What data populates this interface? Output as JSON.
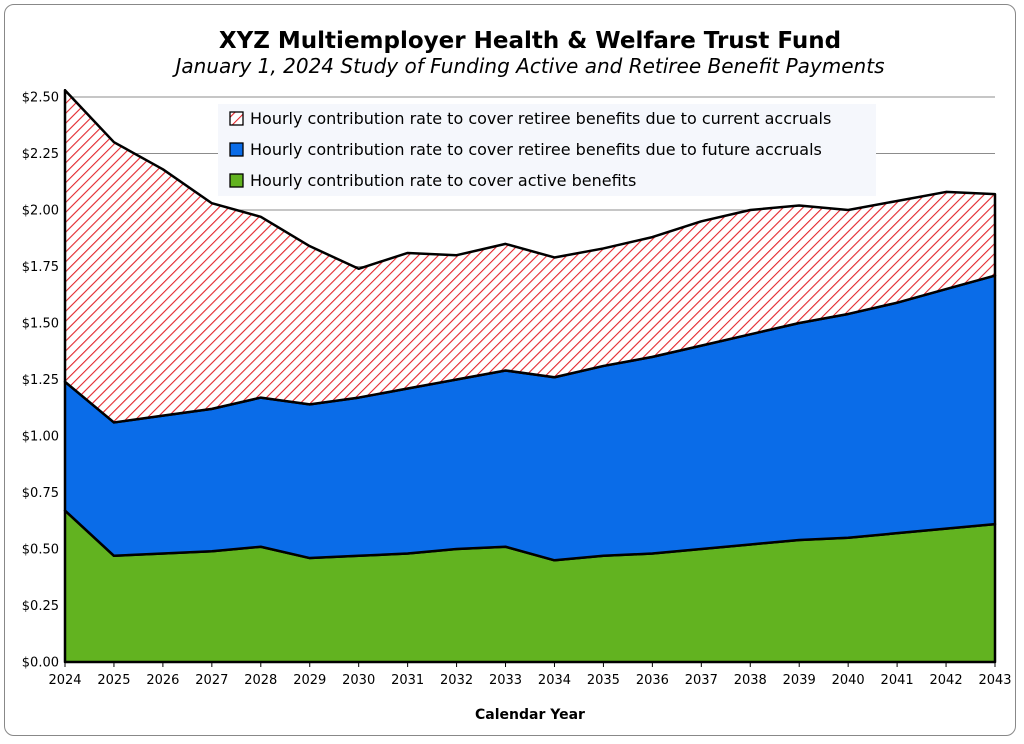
{
  "chart_data": {
    "type": "area",
    "stacked": true,
    "title": "XYZ Multiemployer Health & Welfare Trust Fund",
    "subtitle": "January 1, 2024 Study of Funding Active and Retiree Benefit Payments",
    "xlabel": "Calendar Year",
    "ylabel": "",
    "ylim": [
      0,
      2.5
    ],
    "yticks": [
      "$0.00",
      "$0.25",
      "$0.50",
      "$0.75",
      "$1.00",
      "$1.25",
      "$1.50",
      "$1.75",
      "$2.00",
      "$2.25",
      "$2.50"
    ],
    "grid": true,
    "legend_position": "top-right",
    "x": [
      "2024",
      "2025",
      "2026",
      "2027",
      "2028",
      "2029",
      "2030",
      "2031",
      "2032",
      "2033",
      "2034",
      "2035",
      "2036",
      "2037",
      "2038",
      "2039",
      "2040",
      "2041",
      "2042",
      "2043"
    ],
    "series": [
      {
        "name": "Hourly contribution rate to cover active benefits",
        "color": "#62b320",
        "pattern": "solid",
        "values": [
          0.67,
          0.47,
          0.48,
          0.49,
          0.51,
          0.46,
          0.47,
          0.48,
          0.5,
          0.51,
          0.45,
          0.47,
          0.48,
          0.5,
          0.52,
          0.54,
          0.55,
          0.57,
          0.59,
          0.61
        ]
      },
      {
        "name": "Hourly contribution rate to cover retiree benefits due to future accruals",
        "color": "#0a6ce8",
        "pattern": "solid",
        "values": [
          0.57,
          0.59,
          0.61,
          0.63,
          0.66,
          0.68,
          0.7,
          0.73,
          0.75,
          0.78,
          0.81,
          0.84,
          0.87,
          0.9,
          0.93,
          0.96,
          0.99,
          1.02,
          1.06,
          1.1
        ]
      },
      {
        "name": "Hourly contribution rate to cover retiree benefits due to current accruals",
        "color": "#e3262c",
        "pattern": "diagonal-hatch",
        "values": [
          1.29,
          1.24,
          1.09,
          0.91,
          0.8,
          0.7,
          0.57,
          0.6,
          0.55,
          0.56,
          0.53,
          0.52,
          0.53,
          0.55,
          0.55,
          0.52,
          0.46,
          0.45,
          0.43,
          0.36
        ]
      }
    ]
  }
}
